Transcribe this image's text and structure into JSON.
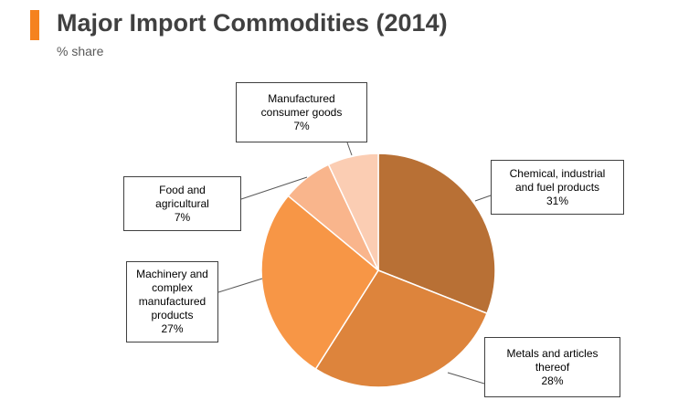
{
  "header": {
    "title": "Major Import Commodities (2014)",
    "subtitle": "% share",
    "accent_color": "#f5821f"
  },
  "chart_data": {
    "type": "pie",
    "title": "Major Import Commodities (2014)",
    "subtitle": "% share",
    "unit": "%",
    "start": "12 o'clock, clockwise",
    "slices": [
      {
        "label_lines": [
          "Chemical, industrial",
          "and fuel products"
        ],
        "value": 31,
        "value_label": "31%",
        "color": "#b87035"
      },
      {
        "label_lines": [
          "Metals and articles",
          "thereof"
        ],
        "value": 28,
        "value_label": "28%",
        "color": "#dd843c"
      },
      {
        "label_lines": [
          "Machinery and",
          "complex",
          "manufactured",
          "products"
        ],
        "value": 27,
        "value_label": "27%",
        "color": "#f79646"
      },
      {
        "label_lines": [
          "Food and",
          "agricultural"
        ],
        "value": 7,
        "value_label": "7%",
        "color": "#f9b58c"
      },
      {
        "label_lines": [
          "Manufactured",
          "consumer goods"
        ],
        "value": 7,
        "value_label": "7%",
        "color": "#fbcdb3"
      }
    ]
  }
}
